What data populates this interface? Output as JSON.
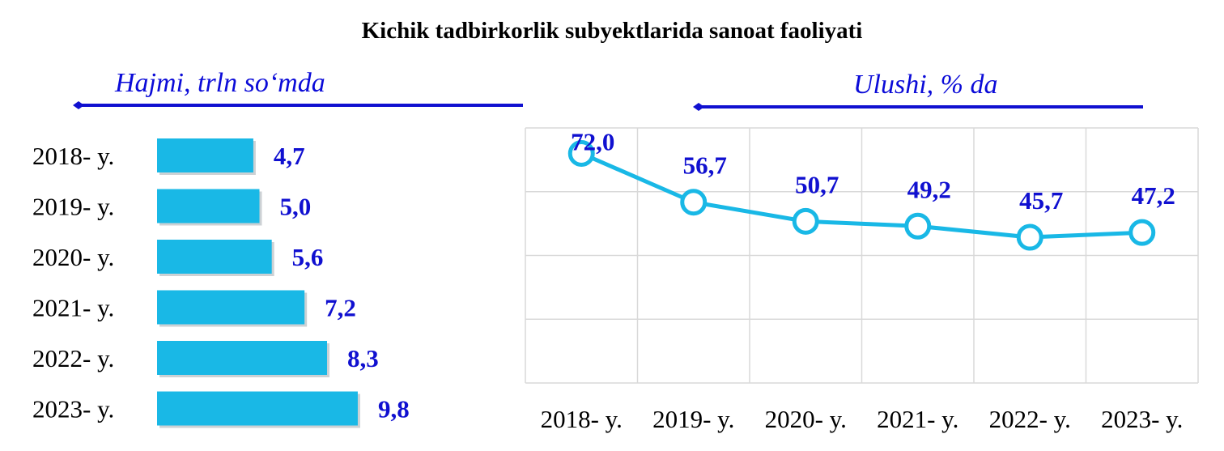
{
  "title": "Kichik tadbirkorlik subyektlarida sanoat faoliyati",
  "colors": {
    "bar": "#19b8e6",
    "line": "#19b8e6",
    "value_text": "#1010d0",
    "arrow": "#1010d0",
    "grid": "#d9d9d9"
  },
  "chart_data": [
    {
      "type": "bar",
      "orientation": "horizontal",
      "label": "Hajmi, trln so‘mda",
      "categories": [
        "2018- y.",
        "2019- y.",
        "2020- y.",
        "2021- y.",
        "2022- y.",
        "2023- y."
      ],
      "values": [
        4.7,
        5.0,
        5.6,
        7.2,
        8.3,
        9.8
      ],
      "value_labels": [
        "4,7",
        "5,0",
        "5,6",
        "7,2",
        "8,3",
        "9,8"
      ],
      "grid": false
    },
    {
      "type": "line",
      "label": "Ulushi, % da",
      "categories": [
        "2018- y.",
        "2019- y.",
        "2020- y.",
        "2021- y.",
        "2022- y.",
        "2023- y."
      ],
      "values": [
        72.0,
        56.7,
        50.7,
        49.2,
        45.7,
        47.2
      ],
      "value_labels": [
        "72,0",
        "56,7",
        "50,7",
        "49,2",
        "45,7",
        "47,2"
      ],
      "ylim": [
        0,
        80
      ],
      "grid": true
    }
  ]
}
